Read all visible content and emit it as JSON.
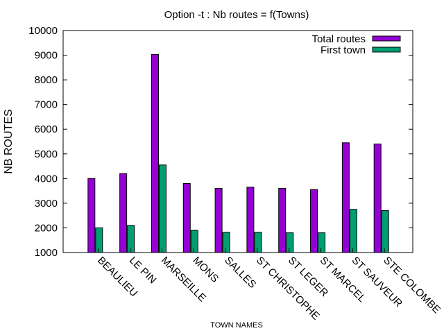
{
  "chart_data": {
    "type": "bar",
    "title": "Option -t : Nb routes = f(Towns)",
    "xlabel": "TOWN NAMES",
    "ylabel": "NB ROUTES",
    "ylim": [
      1000,
      10000
    ],
    "yticks": [
      "1000",
      "2000",
      "3000",
      "4000",
      "5000",
      "6000",
      "7000",
      "8000",
      "9000",
      "10000"
    ],
    "categories": [
      "BEAULIEU",
      "LE PIN",
      "MARSEILLE",
      "MONS",
      "SALLES",
      "ST CHRISTOPHE",
      "ST LEGER",
      "ST MARCEL",
      "ST SAUVEUR",
      "STE COLOMBE"
    ],
    "series": [
      {
        "name": "Total routes",
        "color": "#9400d3",
        "values": [
          4000,
          4200,
          9030,
          3800,
          3600,
          3650,
          3600,
          3550,
          5450,
          5400
        ]
      },
      {
        "name": "First town",
        "color": "#009e73",
        "values": [
          2000,
          2100,
          4550,
          1900,
          1820,
          1820,
          1800,
          1800,
          2750,
          2700
        ]
      }
    ],
    "legend_position": "top-right",
    "grid": false
  }
}
